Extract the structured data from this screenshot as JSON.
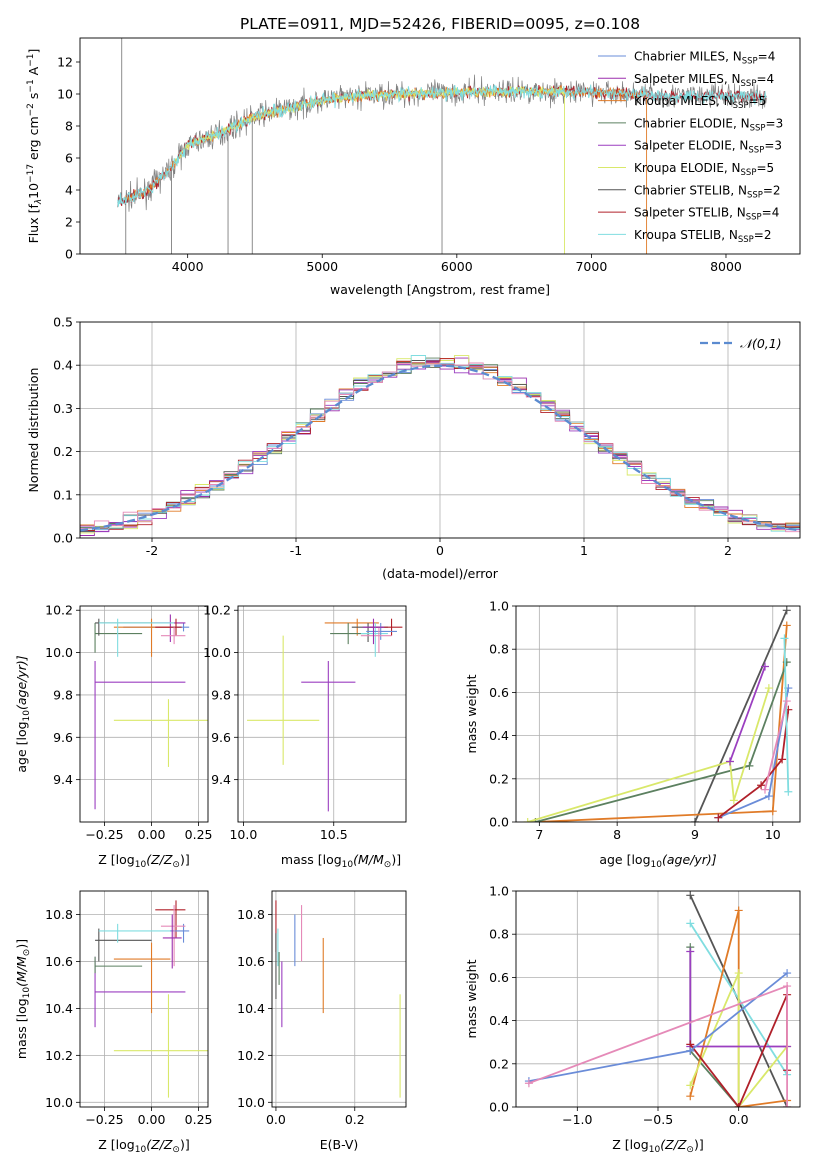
{
  "figure_title": "PLATE=0911, MJD=52426, FIBERID=0095, z=0.108",
  "colors": {
    "Chabrier MILES": "#6a8cd8",
    "Salpeter MILES": "#9b2fae",
    "Kroupa MILES": "#e07b28",
    "Chabrier ELODIE": "#5c8060",
    "Salpeter ELODIE": "#9b3fc0",
    "Kroupa ELODIE": "#d9e86a",
    "Chabrier STELIB": "#555555",
    "Salpeter STELIB": "#b0202a",
    "Kroupa STELIB": "#80dde0",
    "normal": "#5b8bd0",
    "pink": "#e58ab8"
  },
  "chart_data": [
    {
      "id": "spectrum",
      "type": "line",
      "title": "PLATE=0911, MJD=52426, FIBERID=0095, z=0.108",
      "xlabel": "wavelength [Angstrom, rest frame]",
      "ylabel": "Flux [f",
      "ylabel_sub": "λ",
      "ylabel_sup": "10",
      "ylabel_sup_exp": "−17",
      "ylabel_rest": " erg cm",
      "ylabel_exp2": "−2",
      "ylabel_s": " s",
      "ylabel_exp3": "−1",
      "ylabel_A": " A",
      "ylabel_exp4": "−1",
      "ylabel_end": "]",
      "xlim": [
        3200,
        8550
      ],
      "ylim": [
        0,
        13.5
      ],
      "xticks": [
        4000,
        5000,
        6000,
        7000,
        8000
      ],
      "yticks": [
        0,
        2,
        4,
        6,
        8,
        10,
        12
      ],
      "legend_position": "top-right",
      "legend": [
        {
          "name": "Chabrier MILES",
          "nssp": "4"
        },
        {
          "name": "Salpeter MILES",
          "nssp": "4"
        },
        {
          "name": "Kroupa MILES",
          "nssp": "5"
        },
        {
          "name": "Chabrier ELODIE",
          "nssp": "3"
        },
        {
          "name": "Salpeter ELODIE",
          "nssp": "3"
        },
        {
          "name": "Kroupa ELODIE",
          "nssp": "5"
        },
        {
          "name": "Chabrier STELIB",
          "nssp": "2"
        },
        {
          "name": "Salpeter STELIB",
          "nssp": "4"
        },
        {
          "name": "Kroupa STELIB",
          "nssp": "2"
        }
      ],
      "nssp_label": "N",
      "nssp_sub": "SSP",
      "continuum": {
        "x": [
          3500,
          3700,
          3900,
          4000,
          4200,
          4500,
          4800,
          5000,
          5300,
          5600,
          6000,
          6500,
          7000,
          7500,
          8000,
          8300
        ],
        "y": [
          3.3,
          3.9,
          5.6,
          6.8,
          7.4,
          8.6,
          9.2,
          9.6,
          9.9,
          10.0,
          10.1,
          10.2,
          10.1,
          9.9,
          9.9,
          9.8
        ]
      },
      "data_range": [
        3480,
        8300
      ],
      "model_ranges": {
        "MILES": [
          3540,
          7410
        ],
        "ELODIE": [
          3900,
          6800
        ],
        "STELIB": [
          3480,
          8300
        ]
      }
    },
    {
      "id": "residuals",
      "type": "line",
      "xlabel": "(data-model)/error",
      "ylabel": "Normed distribution",
      "xlim": [
        -2.5,
        2.5
      ],
      "ylim": [
        0,
        0.5
      ],
      "xticks": [
        -2,
        -1,
        0,
        1,
        2
      ],
      "ytick_labels": [
        "0.0",
        "0.1",
        "0.2",
        "0.3",
        "0.4",
        "0.5"
      ],
      "yticks": [
        0,
        0.1,
        0.2,
        0.3,
        0.4,
        0.5
      ],
      "grid": true,
      "legend_position": "top-right",
      "normal_label": "𝒩(0,1)",
      "bin_width": 0.1
    },
    {
      "id": "age_vs_Z",
      "type": "scatter",
      "xlabel": "Z [log",
      "xlabel_sub": "10",
      "xlabel_rest": "(Z/Z",
      "xlabel_sun": "⊙",
      "xlabel_end": ")]",
      "ylabel": "age  [log",
      "ylabel_sub": "10",
      "ylabel_rest": "(age/yr)]",
      "xlim": [
        -0.38,
        0.3
      ],
      "ylim": [
        9.2,
        10.22
      ],
      "xticks": [
        -0.25,
        0.0,
        0.25
      ],
      "xtick_labels": [
        "−0.25",
        "0.00",
        "0.25"
      ],
      "yticks": [
        9.4,
        9.6,
        9.8,
        10.0,
        10.2
      ],
      "ytick_labels": [
        "9.4",
        "9.6",
        "9.8",
        "10.0",
        "10.2"
      ],
      "points": [
        {
          "model": "Salpeter ELODIE",
          "x": -0.3,
          "xerr": 0.0,
          "y": 9.86,
          "yerr": 0.6,
          "xlo": -0.3,
          "xhi": 0.18
        },
        {
          "model": "Kroupa ELODIE",
          "x": 0.09,
          "xerr": 0.2,
          "y": 9.68,
          "yerr": 0.22,
          "xlo": -0.2,
          "xhi": 0.3
        },
        {
          "model": "Chabrier MILES",
          "x": 0.17,
          "y": 10.12,
          "xlo": -0.15,
          "xhi": 0.2,
          "ylo": 10.1,
          "yhi": 10.14
        },
        {
          "model": "Salpeter MILES",
          "x": 0.1,
          "y": 10.14,
          "xlo": 0.0,
          "xhi": 0.18,
          "ylo": 10.05,
          "yhi": 10.18
        },
        {
          "model": "Kroupa MILES",
          "x": 0.0,
          "y": 10.12,
          "xlo": -0.2,
          "xhi": 0.1,
          "ylo": 9.98,
          "yhi": 10.16
        },
        {
          "model": "Chabrier ELODIE",
          "x": -0.3,
          "y": 10.09,
          "xlo": -0.3,
          "xhi": -0.05,
          "ylo": 10.0,
          "yhi": 10.14
        },
        {
          "model": "Chabrier STELIB",
          "x": -0.28,
          "y": 10.14,
          "xlo": -0.3,
          "xhi": 0.0,
          "ylo": 10.08,
          "yhi": 10.16
        },
        {
          "model": "Salpeter STELIB",
          "x": 0.13,
          "y": 10.12,
          "xlo": 0.02,
          "xhi": 0.16,
          "ylo": 10.08,
          "yhi": 10.16
        },
        {
          "model": "Kroupa STELIB",
          "x": -0.18,
          "y": 10.14,
          "xlo": -0.28,
          "xhi": 0.12,
          "ylo": 9.98,
          "yhi": 10.16
        },
        {
          "model": "pink",
          "x": 0.12,
          "y": 10.08,
          "xlo": 0.05,
          "xhi": 0.18,
          "ylo": 10.04,
          "yhi": 10.12
        }
      ]
    },
    {
      "id": "age_vs_mass",
      "type": "scatter",
      "xlabel": "mass [log",
      "xlabel_sub": "10",
      "xlabel_rest": "(M/M",
      "xlabel_sun": "⊙",
      "xlabel_end": ")]",
      "xlim": [
        9.97,
        10.9
      ],
      "ylim": [
        9.2,
        10.22
      ],
      "xticks": [
        10.0,
        10.5
      ],
      "xtick_labels": [
        "10.0",
        "10.5"
      ],
      "yticks": [
        9.4,
        9.6,
        9.8,
        10.0,
        10.2
      ],
      "ytick_labels": [
        "9.4",
        "9.6",
        "9.8",
        "10.0",
        "10.2"
      ],
      "points": [
        {
          "model": "Kroupa ELODIE",
          "x": 10.22,
          "y": 9.68,
          "xlo": 10.02,
          "xhi": 10.42,
          "ylo": 9.47,
          "yhi": 10.08
        },
        {
          "model": "Salpeter ELODIE",
          "x": 10.47,
          "y": 9.86,
          "xlo": 10.32,
          "xhi": 10.62,
          "ylo": 9.25,
          "yhi": 9.96
        },
        {
          "model": "Kroupa MILES",
          "x": 10.63,
          "y": 10.14,
          "xlo": 10.45,
          "xhi": 10.75,
          "ylo": 10.08,
          "yhi": 10.16
        },
        {
          "model": "Chabrier ELODIE",
          "x": 10.58,
          "y": 10.09,
          "xlo": 10.48,
          "xhi": 10.7,
          "ylo": 10.04,
          "yhi": 10.14
        },
        {
          "model": "Chabrier STELIB",
          "x": 10.69,
          "y": 10.12,
          "xlo": 10.6,
          "xhi": 10.8,
          "ylo": 10.05,
          "yhi": 10.14
        },
        {
          "model": "Salpeter STELIB",
          "x": 10.82,
          "y": 10.12,
          "xlo": 10.7,
          "xhi": 10.88,
          "ylo": 10.08,
          "yhi": 10.16
        },
        {
          "model": "Kroupa STELIB",
          "x": 10.73,
          "y": 10.09,
          "xlo": 10.65,
          "xhi": 10.8,
          "ylo": 9.98,
          "yhi": 10.14
        },
        {
          "model": "Chabrier MILES",
          "x": 10.76,
          "y": 10.1,
          "xlo": 10.68,
          "xhi": 10.85,
          "ylo": 10.06,
          "yhi": 10.14
        },
        {
          "model": "pink",
          "x": 10.75,
          "y": 10.08,
          "xlo": 10.65,
          "xhi": 10.82,
          "ylo": 10.0,
          "yhi": 10.12
        },
        {
          "model": "Salpeter MILES",
          "x": 10.72,
          "y": 10.12,
          "xlo": 10.66,
          "xhi": 10.78,
          "ylo": 10.04,
          "yhi": 10.16
        }
      ]
    },
    {
      "id": "massweight_vs_age",
      "type": "line",
      "xlabel": "age  [log",
      "xlabel_sub": "10",
      "xlabel_rest": "(age/yr)]",
      "ylabel": "mass weight",
      "xlim": [
        6.7,
        10.35
      ],
      "ylim": [
        0,
        1.0
      ],
      "xticks": [
        7,
        8,
        9,
        10
      ],
      "yticks": [
        0.0,
        0.2,
        0.4,
        0.6,
        0.8,
        1.0
      ],
      "ytick_labels": [
        "0.0",
        "0.2",
        "0.4",
        "0.6",
        "0.8",
        "1.0"
      ],
      "series": [
        {
          "model": "Chabrier STELIB",
          "x": [
            9.0,
            10.18
          ],
          "y": [
            0.0,
            0.98
          ]
        },
        {
          "model": "Kroupa MILES",
          "x": [
            6.95,
            10.0,
            10.18
          ],
          "y": [
            0.0,
            0.05,
            0.91
          ]
        },
        {
          "model": "Chabrier ELODIE",
          "x": [
            6.95,
            9.7,
            10.18
          ],
          "y": [
            0.0,
            0.26,
            0.74
          ]
        },
        {
          "model": "Kroupa ELODIE",
          "x": [
            6.85,
            9.45,
            9.5,
            9.95
          ],
          "y": [
            0.0,
            0.28,
            0.1,
            0.62
          ]
        },
        {
          "model": "Salpeter ELODIE",
          "x": [
            9.45,
            9.9
          ],
          "y": [
            0.28,
            0.72
          ]
        },
        {
          "model": "Chabrier MILES",
          "x": [
            9.3,
            9.95,
            10.2
          ],
          "y": [
            0.02,
            0.12,
            0.62
          ]
        },
        {
          "model": "Salpeter STELIB",
          "x": [
            9.3,
            9.85,
            10.12,
            10.2
          ],
          "y": [
            0.02,
            0.17,
            0.29,
            0.52
          ]
        },
        {
          "model": "Kroupa STELIB",
          "x": [
            10.15,
            10.2
          ],
          "y": [
            0.85,
            0.14
          ]
        },
        {
          "model": "pink",
          "x": [
            9.9,
            10.18
          ],
          "y": [
            0.15,
            0.56
          ]
        }
      ]
    },
    {
      "id": "mass_vs_Z",
      "type": "scatter",
      "xlabel": "Z [log",
      "xlabel_sub": "10",
      "xlabel_rest": "(Z/Z",
      "xlabel_sun": "⊙",
      "xlabel_end": ")]",
      "ylabel": "mass [log",
      "ylabel_sub": "10",
      "ylabel_rest": "(M/M",
      "ylabel_sun": "⊙",
      "ylabel_end": ")]",
      "xlim": [
        -0.38,
        0.3
      ],
      "ylim": [
        9.98,
        10.9
      ],
      "xticks": [
        -0.25,
        0.0,
        0.25
      ],
      "xtick_labels": [
        "−0.25",
        "0.00",
        "0.25"
      ],
      "yticks": [
        10.0,
        10.2,
        10.4,
        10.6,
        10.8
      ],
      "ytick_labels": [
        "10.0",
        "10.2",
        "10.4",
        "10.6",
        "10.8"
      ],
      "points": [
        {
          "model": "Kroupa ELODIE",
          "x": 0.09,
          "y": 10.22,
          "xlo": -0.2,
          "xhi": 0.3,
          "ylo": 10.02,
          "yhi": 10.46
        },
        {
          "model": "Salpeter ELODIE",
          "x": -0.3,
          "y": 10.47,
          "xlo": -0.3,
          "xhi": 0.18,
          "ylo": 10.32,
          "yhi": 10.62
        },
        {
          "model": "Kroupa MILES",
          "x": 0.0,
          "y": 10.61,
          "xlo": -0.2,
          "xhi": 0.1,
          "ylo": 10.38,
          "yhi": 10.68
        },
        {
          "model": "Chabrier ELODIE",
          "x": -0.3,
          "y": 10.58,
          "xlo": -0.3,
          "xhi": -0.05,
          "ylo": 10.55,
          "yhi": 10.62
        },
        {
          "model": "Chabrier STELIB",
          "x": -0.28,
          "y": 10.69,
          "xlo": -0.3,
          "xhi": 0.0,
          "ylo": 10.6,
          "yhi": 10.74
        },
        {
          "model": "Salpeter STELIB",
          "x": 0.13,
          "y": 10.82,
          "xlo": 0.02,
          "xhi": 0.18,
          "ylo": 10.7,
          "yhi": 10.86
        },
        {
          "model": "Kroupa STELIB",
          "x": -0.18,
          "y": 10.73,
          "xlo": -0.28,
          "xhi": 0.12,
          "ylo": 10.68,
          "yhi": 10.76
        },
        {
          "model": "Chabrier MILES",
          "x": 0.17,
          "y": 10.73,
          "xlo": 0.1,
          "xhi": 0.2,
          "ylo": 10.68,
          "yhi": 10.76
        },
        {
          "model": "pink",
          "x": 0.12,
          "y": 10.75,
          "xlo": 0.05,
          "xhi": 0.18,
          "ylo": 10.58,
          "yhi": 10.84
        },
        {
          "model": "Salpeter MILES",
          "x": 0.11,
          "y": 10.7,
          "xlo": 0.06,
          "xhi": 0.16,
          "ylo": 10.57,
          "yhi": 10.8
        }
      ]
    },
    {
      "id": "mass_vs_ebv",
      "type": "scatter",
      "xlabel": "E(B-V)",
      "xlim": [
        -0.01,
        0.33
      ],
      "ylim": [
        9.98,
        10.9
      ],
      "xticks": [
        0.0,
        0.2
      ],
      "xtick_labels": [
        "0.0",
        "0.2"
      ],
      "yticks": [
        10.0,
        10.2,
        10.4,
        10.6,
        10.8
      ],
      "ytick_labels": [
        "10.0",
        "10.2",
        "10.4",
        "10.6",
        "10.8"
      ],
      "points": [
        {
          "model": "Salpeter STELIB",
          "x": 0.0,
          "ylo": 10.64,
          "yhi": 10.86
        },
        {
          "model": "Chabrier STELIB",
          "x": 0.0,
          "ylo": 10.44,
          "yhi": 10.72
        },
        {
          "model": "Kroupa STELIB",
          "x": 0.005,
          "ylo": 10.58,
          "yhi": 10.74
        },
        {
          "model": "Chabrier ELODIE",
          "x": 0.008,
          "ylo": 10.5,
          "yhi": 10.64
        },
        {
          "model": "Salpeter ELODIE",
          "x": 0.015,
          "ylo": 10.32,
          "yhi": 10.6
        },
        {
          "model": "Chabrier MILES",
          "x": 0.048,
          "ylo": 10.58,
          "yhi": 10.8
        },
        {
          "model": "pink",
          "x": 0.065,
          "ylo": 10.6,
          "yhi": 10.84
        },
        {
          "model": "Kroupa MILES",
          "x": 0.12,
          "ylo": 10.38,
          "yhi": 10.7
        },
        {
          "model": "Kroupa ELODIE",
          "x": 0.315,
          "ylo": 10.02,
          "yhi": 10.46
        }
      ]
    },
    {
      "id": "massweight_vs_Z",
      "type": "line",
      "xlabel": "Z [log",
      "xlabel_sub": "10",
      "xlabel_rest": "(Z/Z",
      "xlabel_sun": "⊙",
      "xlabel_end": ")]",
      "ylabel": "mass weight",
      "xlim": [
        -1.38,
        0.38
      ],
      "ylim": [
        0,
        1.0
      ],
      "xticks": [
        -1.0,
        -0.5,
        0.0
      ],
      "xtick_labels": [
        "−1.0",
        "−0.5",
        "0.0"
      ],
      "yticks": [
        0.0,
        0.2,
        0.4,
        0.6,
        0.8,
        1.0
      ],
      "ytick_labels": [
        "0.0",
        "0.2",
        "0.4",
        "0.6",
        "0.8",
        "1.0"
      ],
      "series": [
        {
          "model": "Chabrier STELIB",
          "x": [
            -0.3,
            0.3
          ],
          "y": [
            0.98,
            0.0
          ]
        },
        {
          "model": "Kroupa STELIB",
          "x": [
            -0.3,
            0.3
          ],
          "y": [
            0.85,
            0.15
          ]
        },
        {
          "model": "Chabrier ELODIE",
          "x": [
            -0.3,
            -0.3,
            0.0
          ],
          "y": [
            0.74,
            0.26,
            0.0
          ]
        },
        {
          "model": "Kroupa MILES",
          "x": [
            -0.3,
            0.0,
            0.0,
            0.3
          ],
          "y": [
            0.05,
            0.91,
            0.0,
            0.03
          ]
        },
        {
          "model": "Kroupa ELODIE",
          "x": [
            -0.3,
            0.0,
            0.0,
            0.3
          ],
          "y": [
            0.1,
            0.62,
            0.0,
            0.28
          ]
        },
        {
          "model": "Salpeter ELODIE",
          "x": [
            -0.3,
            -0.3,
            0.3
          ],
          "y": [
            0.72,
            0.28,
            0.28
          ]
        },
        {
          "model": "Salpeter STELIB",
          "x": [
            -0.3,
            0.0,
            0.3,
            0.3
          ],
          "y": [
            0.29,
            0.0,
            0.52,
            0.17
          ]
        },
        {
          "model": "Chabrier MILES",
          "x": [
            -1.3,
            -0.3,
            0.3
          ],
          "y": [
            0.12,
            0.26,
            0.62
          ]
        },
        {
          "model": "pink",
          "x": [
            -1.3,
            0.3,
            0.3
          ],
          "y": [
            0.11,
            0.56,
            0.0
          ]
        }
      ]
    }
  ]
}
